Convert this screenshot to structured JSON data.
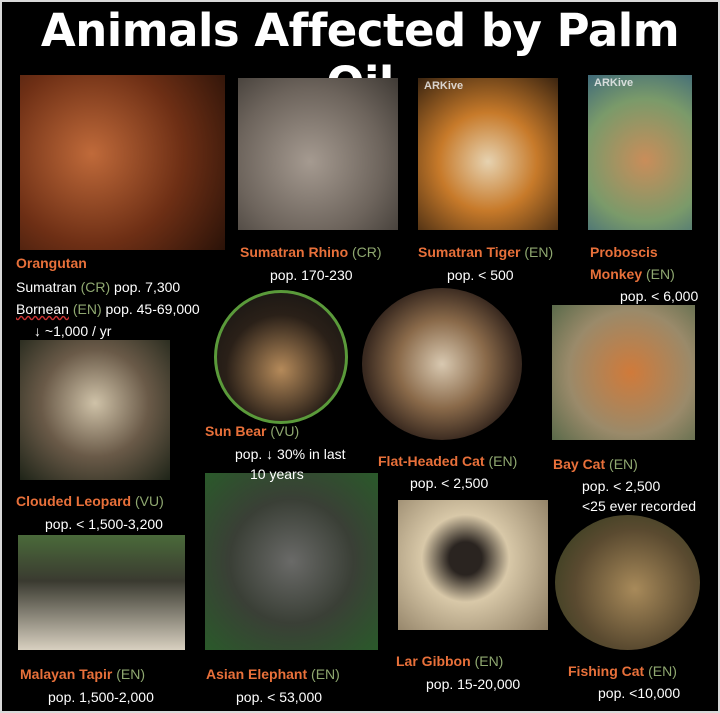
{
  "title": "Animals Affected by Palm Oil",
  "colors": {
    "background": "#000000",
    "name": "#e8703a",
    "status": "#8fa870",
    "text": "#ffffff"
  },
  "watermarks": [
    "ARKive",
    "ARKive"
  ],
  "animals": [
    {
      "id": "orangutan",
      "name": "Orangutan",
      "status": "",
      "lines": [
        {
          "name": "Sumatran",
          "status": "(CR)",
          "text": "pop. 7,300"
        },
        {
          "name": "Bornean",
          "status": "(EN)",
          "text": "pop. 45-69,000"
        },
        {
          "text": "↓ ~1,000 / yr"
        }
      ]
    },
    {
      "id": "sumatran-rhino",
      "name": "Sumatran  Rhino",
      "status": "(CR)",
      "lines": [
        {
          "text": "pop. 170-230"
        }
      ]
    },
    {
      "id": "sumatran-tiger",
      "name": "Sumatran  Tiger",
      "status": "(EN)",
      "lines": [
        {
          "text": "pop. < 500"
        }
      ]
    },
    {
      "id": "proboscis-monkey",
      "name": "Proboscis",
      "name2": "Monkey",
      "status": "(EN)",
      "lines": [
        {
          "text": "pop. < 6,000"
        }
      ]
    },
    {
      "id": "sun-bear",
      "name": "Sun Bear",
      "status": "(VU)",
      "lines": [
        {
          "text": "pop. ↓ 30% in last"
        },
        {
          "text": "10 years"
        }
      ]
    },
    {
      "id": "flat-headed-cat",
      "name": "Flat-Headed  Cat",
      "status": "(EN)",
      "lines": [
        {
          "text": "pop. < 2,500"
        }
      ]
    },
    {
      "id": "bay-cat",
      "name": "Bay Cat",
      "status": "(EN)",
      "lines": [
        {
          "text": "pop. < 2,500"
        },
        {
          "text": "<25 ever recorded"
        }
      ]
    },
    {
      "id": "clouded-leopard",
      "name": "Clouded  Leopard",
      "status": "(VU)",
      "lines": [
        {
          "text": "pop. < 1,500-3,200"
        }
      ]
    },
    {
      "id": "malayan-tapir",
      "name": "Malayan Tapir",
      "status": "(EN)",
      "lines": [
        {
          "text": "pop. 1,500-2,000"
        }
      ]
    },
    {
      "id": "asian-elephant",
      "name": "Asian Elephant",
      "status": "(EN)",
      "lines": [
        {
          "text": "pop. < 53,000"
        }
      ]
    },
    {
      "id": "lar-gibbon",
      "name": "Lar Gibbon",
      "status": "(EN)",
      "lines": [
        {
          "text": "pop. 15-20,000"
        }
      ]
    },
    {
      "id": "fishing-cat",
      "name": "Fishing Cat",
      "status": "(EN)",
      "lines": [
        {
          "text": "pop. <10,000"
        }
      ]
    }
  ]
}
